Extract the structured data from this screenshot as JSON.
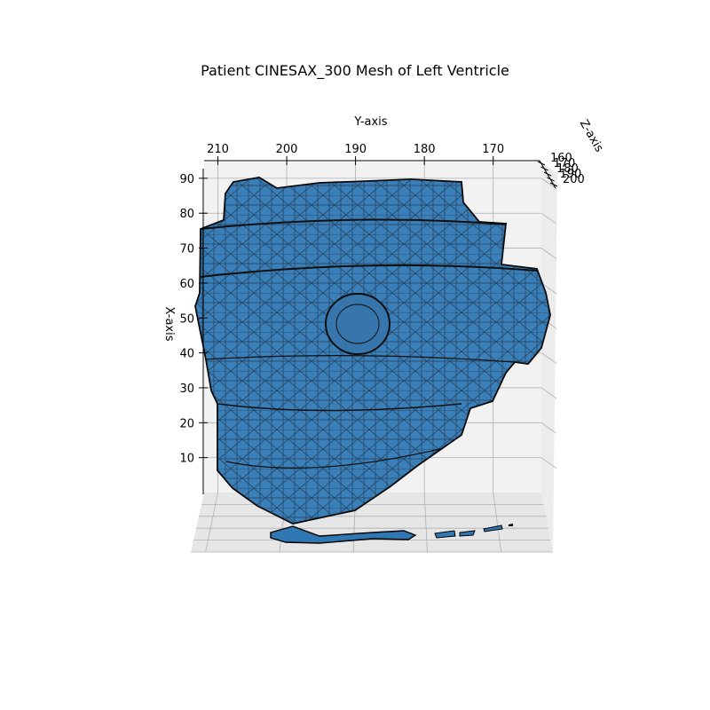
{
  "chart_data": {
    "type": "3d-mesh",
    "title": "Patient CINESAX_300 Mesh of Left Ventricle",
    "xlabel": "X-axis",
    "ylabel": "Y-axis",
    "zlabel": "Z-axis",
    "x_ticks": [
      10,
      20,
      30,
      40,
      50,
      60,
      70,
      80,
      90
    ],
    "y_ticks": [
      210,
      200,
      190,
      180,
      170
    ],
    "z_ticks": [
      160,
      170,
      180,
      190,
      200
    ],
    "xlim": [
      0,
      92
    ],
    "ylim": [
      212,
      163
    ],
    "zlim": [
      160,
      200
    ],
    "grid": true,
    "mesh_face_color": "#2f78b4",
    "mesh_edge_color": "#000000",
    "pane_color": "#f2f2f2",
    "grid_color": "#b0b0b0"
  }
}
